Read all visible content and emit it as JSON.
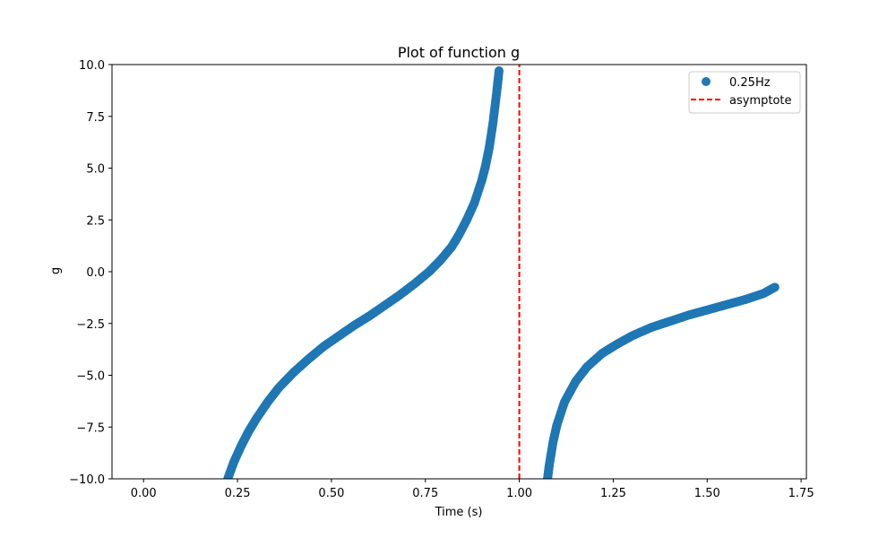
{
  "chart_data": {
    "type": "scatter",
    "title": "Plot of function g",
    "xlabel": "Time (s)",
    "ylabel": "g",
    "xlim": [
      -0.084,
      1.764
    ],
    "ylim": [
      -10.0,
      10.0
    ],
    "xticks": [
      0.0,
      0.25,
      0.5,
      0.75,
      1.0,
      1.25,
      1.5,
      1.75
    ],
    "xtick_labels": [
      "0.00",
      "0.25",
      "0.50",
      "0.75",
      "1.00",
      "1.25",
      "1.50",
      "1.75"
    ],
    "yticks": [
      -10.0,
      -7.5,
      -5.0,
      -2.5,
      0.0,
      2.5,
      5.0,
      7.5,
      10.0
    ],
    "ytick_labels": [
      "−10.0",
      "−7.5",
      "−5.0",
      "−2.5",
      "0.0",
      "2.5",
      "5.0",
      "7.5",
      "10.0"
    ],
    "grid": false,
    "legend_position": "top-right",
    "series": [
      {
        "name": "0.25Hz",
        "style": "markers",
        "color": "#1f77b4",
        "x": [
          0.224,
          0.24,
          0.26,
          0.28,
          0.3,
          0.33,
          0.36,
          0.4,
          0.44,
          0.48,
          0.52,
          0.56,
          0.6,
          0.64,
          0.68,
          0.72,
          0.76,
          0.79,
          0.82,
          0.84,
          0.86,
          0.88,
          0.9,
          0.91,
          0.92,
          0.93,
          0.94,
          0.946
        ],
        "y": [
          -10.0,
          -9.2,
          -8.4,
          -7.7,
          -7.1,
          -6.3,
          -5.6,
          -4.85,
          -4.2,
          -3.6,
          -3.1,
          -2.6,
          -2.15,
          -1.65,
          -1.15,
          -0.6,
          0.0,
          0.55,
          1.2,
          1.8,
          2.5,
          3.3,
          4.4,
          5.1,
          6.0,
          7.2,
          8.7,
          9.7
        ],
        "x2": [
          1.075,
          1.08,
          1.09,
          1.1,
          1.12,
          1.15,
          1.18,
          1.22,
          1.26,
          1.3,
          1.35,
          1.4,
          1.45,
          1.5,
          1.55,
          1.6,
          1.65,
          1.68
        ],
        "y2": [
          -10.0,
          -9.3,
          -8.2,
          -7.4,
          -6.3,
          -5.3,
          -4.6,
          -3.95,
          -3.5,
          -3.1,
          -2.7,
          -2.4,
          -2.1,
          -1.85,
          -1.6,
          -1.35,
          -1.05,
          -0.75
        ]
      },
      {
        "name": "asymptote",
        "style": "dashed",
        "color": "#ff0000",
        "x": [
          1.0,
          1.0
        ],
        "y": [
          -10.0,
          10.0
        ]
      }
    ]
  }
}
